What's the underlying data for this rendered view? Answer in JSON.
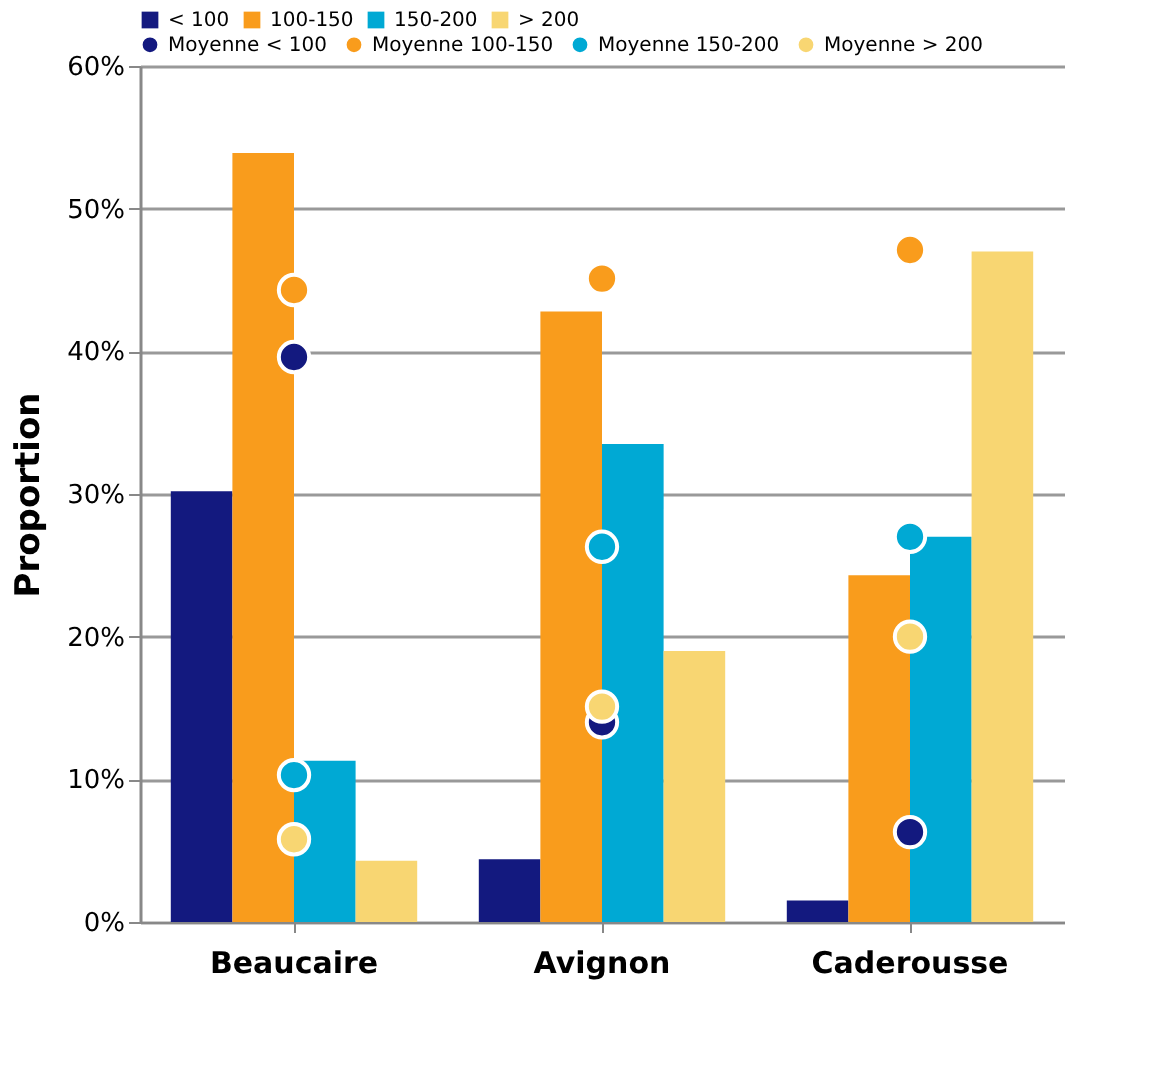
{
  "chart_data": {
    "type": "bar",
    "ylabel": "Proportion",
    "categories": [
      "Beaucaire",
      "Avignon",
      "Caderousse"
    ],
    "series": [
      {
        "name": "< 100",
        "color": "#13197f",
        "values": [
          30.2,
          4.4,
          1.5
        ]
      },
      {
        "name": "100-150",
        "color": "#f99c1c",
        "values": [
          53.9,
          42.8,
          24.3
        ]
      },
      {
        "name": "150-200",
        "color": "#00a9d4",
        "values": [
          11.3,
          33.5,
          27.0
        ]
      },
      {
        "name": "> 200",
        "color": "#f8d672",
        "values": [
          4.3,
          19.0,
          47.0
        ]
      },
      {
        "name": "Moyenne < 100",
        "type": "scatter",
        "color": "#13197f",
        "x": [
          "Beaucaire",
          "Avignon",
          "Caderousse"
        ],
        "values": [
          39.6,
          14.0,
          6.3
        ]
      },
      {
        "name": "Moyenne 100-150",
        "type": "scatter",
        "color": "#f99c1c",
        "x": [
          "Beaucaire",
          "Avignon",
          "Caderousse"
        ],
        "values": [
          44.3,
          45.1,
          47.1
        ]
      },
      {
        "name": "Moyenne 150-200",
        "type": "scatter",
        "color": "#00a9d4",
        "x": [
          "Beaucaire",
          "Avignon",
          "Caderousse"
        ],
        "values": [
          10.3,
          26.3,
          27.0
        ]
      },
      {
        "name": "Moyenne > 200",
        "type": "scatter",
        "color": "#f8d672",
        "x": [
          "Beaucaire",
          "Avignon",
          "Caderousse"
        ],
        "values": [
          5.8,
          15.1,
          20.0
        ]
      }
    ],
    "ylim": [
      0,
      60
    ],
    "yticks": [
      {
        "value": 0,
        "label": "0%"
      },
      {
        "value": 10,
        "label": "10%"
      },
      {
        "value": 20,
        "label": "20%"
      },
      {
        "value": 30,
        "label": "30%"
      },
      {
        "value": 40,
        "label": "40%"
      },
      {
        "value": 50,
        "label": "50%"
      },
      {
        "value": 60,
        "label": "60%"
      }
    ],
    "grid": "y",
    "legend": "top",
    "marker": "circle"
  }
}
